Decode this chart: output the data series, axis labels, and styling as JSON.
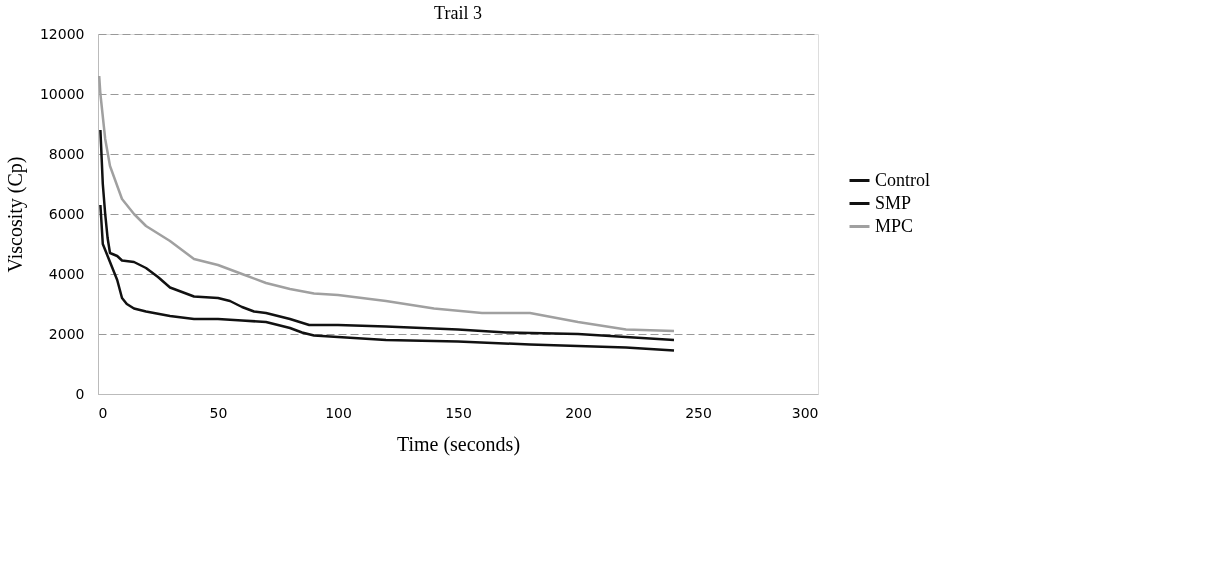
{
  "chart_data": {
    "type": "line",
    "title": "Trail 3",
    "xlabel": "Time (seconds)",
    "ylabel": "Viscosity (Cp)",
    "xlim": [
      0,
      300
    ],
    "xticks": [
      0,
      50,
      100,
      150,
      200,
      250,
      300
    ],
    "ylim": [
      0,
      12000
    ],
    "yticks": [
      0,
      2000,
      4000,
      6000,
      8000,
      10000,
      12000
    ],
    "grid": "y",
    "legend": "right",
    "line_style": "solid",
    "marker": "none",
    "series": [
      {
        "name": "Control",
        "color": "#111111",
        "x": [
          1,
          2,
          4,
          6,
          8,
          10,
          12,
          15,
          20,
          30,
          40,
          50,
          60,
          70,
          80,
          85,
          90,
          100,
          120,
          150,
          180,
          200,
          220,
          240
        ],
        "values": [
          6300,
          5000,
          4600,
          4200,
          3800,
          3200,
          3000,
          2850,
          2750,
          2600,
          2500,
          2500,
          2450,
          2400,
          2200,
          2050,
          1950,
          1900,
          1800,
          1750,
          1650,
          1600,
          1550,
          1450
        ]
      },
      {
        "name": "SMP",
        "color": "#111111",
        "x": [
          1,
          2,
          3,
          4,
          5,
          8,
          10,
          15,
          20,
          25,
          30,
          40,
          50,
          55,
          60,
          65,
          70,
          80,
          88,
          100,
          120,
          150,
          170,
          200,
          240
        ],
        "values": [
          8800,
          7000,
          6000,
          5200,
          4700,
          4600,
          4450,
          4400,
          4200,
          3900,
          3550,
          3250,
          3200,
          3100,
          2900,
          2750,
          2700,
          2500,
          2300,
          2300,
          2250,
          2150,
          2050,
          2000,
          1800
        ]
      },
      {
        "name": "MPC",
        "color": "#a0a0a0",
        "x": [
          0.5,
          1,
          3,
          5,
          10,
          15,
          20,
          30,
          40,
          50,
          60,
          70,
          80,
          90,
          100,
          120,
          140,
          160,
          180,
          200,
          220,
          240
        ],
        "values": [
          10600,
          10000,
          8500,
          7600,
          6500,
          6000,
          5600,
          5100,
          4500,
          4300,
          4000,
          3700,
          3500,
          3350,
          3300,
          3100,
          2850,
          2700,
          2700,
          2400,
          2150,
          2100
        ]
      }
    ]
  }
}
